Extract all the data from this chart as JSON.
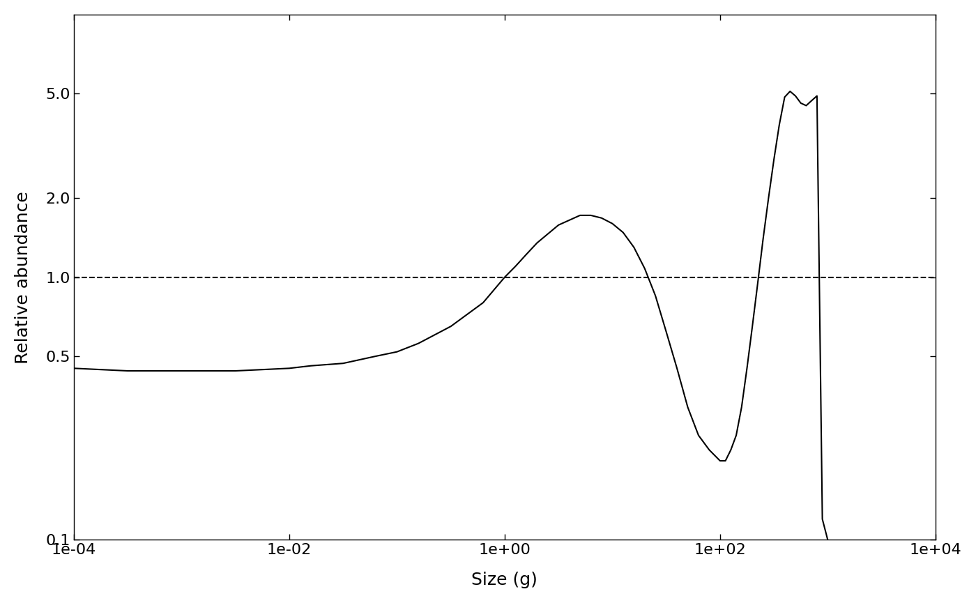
{
  "title": "",
  "xlabel": "Size (g)",
  "ylabel": "Relative abundance",
  "xlim_log": [
    -4,
    4
  ],
  "ylim_log": [
    -1,
    1
  ],
  "dashed_y": 1.0,
  "background_color": "#ffffff",
  "line_color": "#000000",
  "yticks": [
    0.1,
    0.5,
    1.0,
    2.0,
    5.0
  ],
  "ytick_labels": [
    "0.1",
    "0.5",
    "1.0",
    "2.0",
    "5.0"
  ],
  "xticks_log": [
    -4,
    -2,
    0,
    2,
    4
  ],
  "xtick_labels": [
    "1e-04",
    "1e-02",
    "1e+00",
    "1e+02",
    "1e+04"
  ],
  "solid_x": [
    -4.0,
    -3.5,
    -3.0,
    -2.5,
    -2.0,
    -1.8,
    -1.5,
    -1.2,
    -1.0,
    -0.8,
    -0.5,
    -0.2,
    0.0,
    0.1,
    0.2,
    0.3,
    0.5,
    0.7,
    0.8,
    0.9,
    1.0,
    1.1,
    1.2,
    1.3,
    1.4,
    1.5,
    1.6,
    1.7,
    1.8,
    1.9,
    2.0,
    2.05,
    2.1,
    2.15,
    2.2,
    2.25,
    2.3,
    2.35,
    2.4,
    2.45,
    2.5,
    2.55,
    2.6,
    2.65,
    2.7,
    2.75,
    2.8,
    2.85,
    2.9,
    2.95,
    3.0
  ],
  "solid_y": [
    0.45,
    0.44,
    0.44,
    0.44,
    0.45,
    0.46,
    0.47,
    0.5,
    0.52,
    0.56,
    0.65,
    0.8,
    1.0,
    1.1,
    1.22,
    1.35,
    1.58,
    1.72,
    1.72,
    1.68,
    1.6,
    1.48,
    1.3,
    1.08,
    0.85,
    0.62,
    0.45,
    0.32,
    0.25,
    0.22,
    0.2,
    0.2,
    0.22,
    0.25,
    0.32,
    0.45,
    0.65,
    0.95,
    1.4,
    2.0,
    2.8,
    3.8,
    4.85,
    5.1,
    4.9,
    4.6,
    4.5,
    4.7,
    4.9,
    0.12,
    0.1
  ]
}
